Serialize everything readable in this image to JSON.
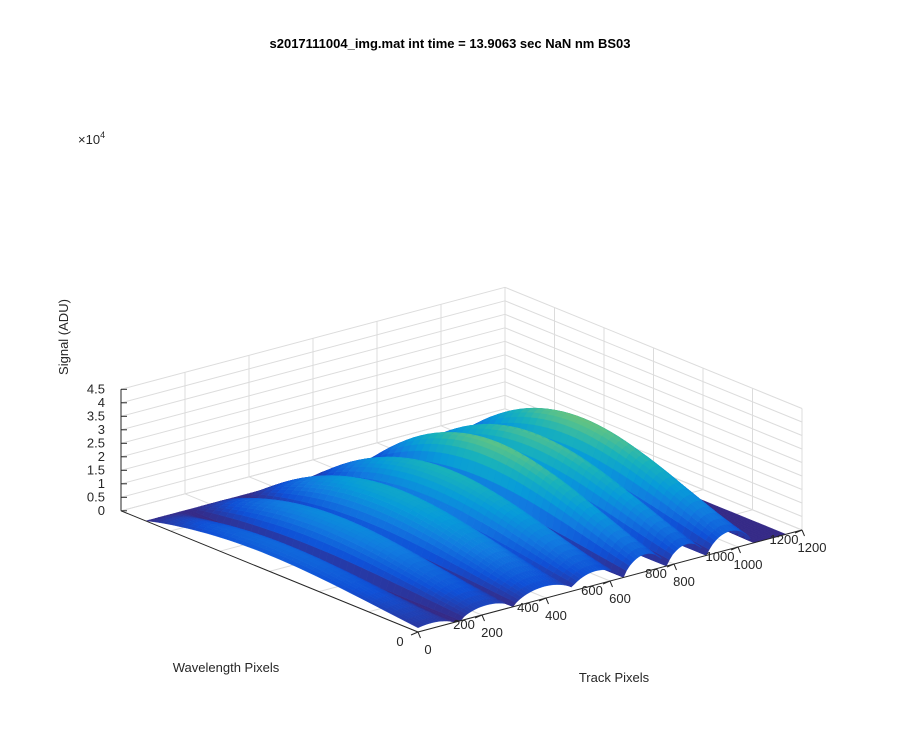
{
  "chart_data": {
    "type": "surface3d",
    "title": "s2017111004_img.mat int time = 13.9063 sec  NaN nm BS03",
    "xlabel": "Track Pixels",
    "ylabel": "Wavelength Pixels",
    "zlabel": "Signal (ADU)",
    "z_exponent_label": "×10",
    "z_exponent_power": "4",
    "xlim": [
      0,
      1200
    ],
    "ylim": [
      0,
      1200
    ],
    "zlim": [
      0,
      4.5
    ],
    "z_scale": 10000,
    "x_ticks": [
      "0",
      "200",
      "400",
      "600",
      "800",
      "1000",
      "1200"
    ],
    "y_ticks": [
      "0",
      "200",
      "400",
      "600",
      "800",
      "1000",
      "1200"
    ],
    "z_ticks": [
      "0",
      "0.5",
      "1",
      "1.5",
      "2",
      "2.5",
      "3",
      "3.5",
      "4",
      "4.5"
    ],
    "x_tick_values": [
      0,
      200,
      400,
      600,
      800,
      1000,
      1200
    ],
    "y_tick_values": [
      0,
      200,
      400,
      600,
      800,
      1000,
      1200
    ],
    "z_tick_values": [
      0,
      0.5,
      1,
      1.5,
      2,
      2.5,
      3,
      3.5,
      4,
      4.5
    ],
    "grid": true,
    "colormap": "parula",
    "tracks": [
      {
        "x_center": 40,
        "x_halfwidth": 70,
        "peak": 1.2
      },
      {
        "x_center": 215,
        "x_halfwidth": 80,
        "peak": 1.9
      },
      {
        "x_center": 395,
        "x_halfwidth": 95,
        "peak": 2.6
      },
      {
        "x_center": 555,
        "x_halfwidth": 80,
        "peak": 3.0
      },
      {
        "x_center": 710,
        "x_halfwidth": 65,
        "peak": 3.8
      },
      {
        "x_center": 840,
        "x_halfwidth": 60,
        "peak": 3.6
      },
      {
        "x_center": 975,
        "x_halfwidth": 70,
        "peak": 3.9
      }
    ],
    "wavelength_range": [
      0,
      1100
    ]
  }
}
